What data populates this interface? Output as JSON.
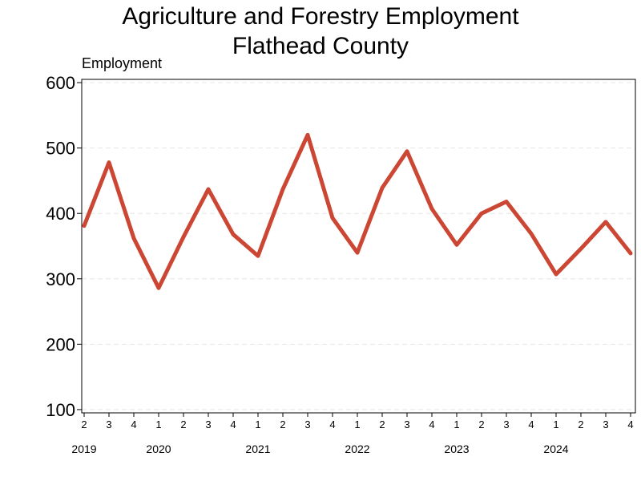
{
  "chart_data": {
    "type": "line",
    "title": "Agriculture and Forestry Employment",
    "subtitle": "Flathead County",
    "ylabel": "Employment",
    "xlabel": "",
    "ylim": [
      95,
      605
    ],
    "yticks": [
      100,
      200,
      300,
      400,
      500,
      600
    ],
    "grid": "horizontal dashed",
    "x": [
      "2019 Q2",
      "2019 Q3",
      "2019 Q4",
      "2020 Q1",
      "2020 Q2",
      "2020 Q3",
      "2020 Q4",
      "2021 Q1",
      "2021 Q2",
      "2021 Q3",
      "2021 Q4",
      "2022 Q1",
      "2022 Q2",
      "2022 Q3",
      "2022 Q4",
      "2023 Q1",
      "2023 Q2",
      "2023 Q3",
      "2023 Q4",
      "2024 Q1",
      "2024 Q2",
      "2024 Q3",
      "2024 Q4"
    ],
    "quarter_labels": [
      "2",
      "3",
      "4",
      "1",
      "2",
      "3",
      "4",
      "1",
      "2",
      "3",
      "4",
      "1",
      "2",
      "3",
      "4",
      "1",
      "2",
      "3",
      "4",
      "1",
      "2",
      "3",
      "4"
    ],
    "year_labels": [
      {
        "label": "2019",
        "index": 0
      },
      {
        "label": "2020",
        "index": 3
      },
      {
        "label": "2021",
        "index": 7
      },
      {
        "label": "2022",
        "index": 11
      },
      {
        "label": "2023",
        "index": 15
      },
      {
        "label": "2024",
        "index": 19
      }
    ],
    "series": [
      {
        "color": "#cc4733",
        "values": [
          381,
          478,
          362,
          286,
          364,
          437,
          368,
          335,
          437,
          520,
          393,
          340,
          439,
          495,
          407,
          352,
          400,
          418,
          369,
          307,
          346,
          387,
          339
        ]
      }
    ]
  }
}
